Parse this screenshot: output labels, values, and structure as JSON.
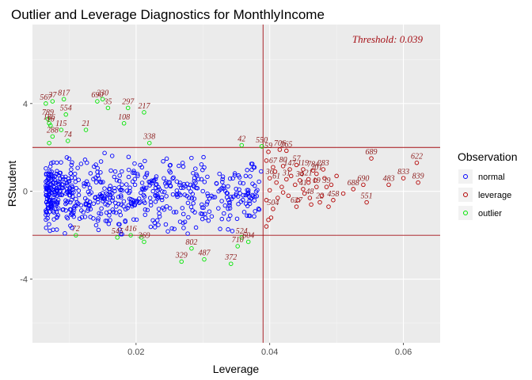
{
  "colors": {
    "panel": "#ebebeb",
    "grid_major": "#ffffff",
    "grid_minor": "#f5f5f5",
    "normal": "#0000ff",
    "leverage": "#b30000",
    "outlier": "#00e600",
    "threshold": "#a50f15",
    "label": "#8b1a1a"
  },
  "chart_data": {
    "type": "scatter",
    "title": "Outlier and Leverage Diagnostics for MonthlyIncome",
    "xlabel": "Leverage",
    "ylabel": "RStudent",
    "xlim": [
      0.0045,
      0.0655
    ],
    "ylim": [
      -6.9,
      7.6
    ],
    "x_ticks": [
      0.02,
      0.04,
      0.06
    ],
    "x_tick_labels": [
      "0.02",
      "0.04",
      "0.06"
    ],
    "y_ticks": [
      -4,
      0,
      4
    ],
    "y_tick_labels": [
      "-4",
      "0",
      "4"
    ],
    "grid": true,
    "legend": {
      "title": "Observation",
      "position": "right",
      "entries": [
        "normal",
        "leverage",
        "outlier"
      ]
    },
    "threshold_text": "Threshold: 0.039",
    "threshold_x": 0.039,
    "outlier_cutoffs": [
      -2,
      2
    ],
    "series": [
      {
        "name": "outlier",
        "points": [
          [
            0.0065,
            4.0,
            "567"
          ],
          [
            0.0075,
            4.1,
            "37"
          ],
          [
            0.0092,
            4.2,
            "817"
          ],
          [
            0.0068,
            3.3,
            "789"
          ],
          [
            0.007,
            3.1,
            "186"
          ],
          [
            0.0072,
            3.0,
            "16"
          ],
          [
            0.0075,
            2.5,
            "288"
          ],
          [
            0.007,
            2.2,
            ""
          ],
          [
            0.0095,
            3.5,
            "554"
          ],
          [
            0.0088,
            2.8,
            "115"
          ],
          [
            0.0098,
            2.3,
            "74"
          ],
          [
            0.0125,
            2.8,
            "21"
          ],
          [
            0.0142,
            4.1,
            "690"
          ],
          [
            0.015,
            4.2,
            "230"
          ],
          [
            0.0158,
            3.8,
            "35"
          ],
          [
            0.0188,
            3.8,
            "297"
          ],
          [
            0.0182,
            3.1,
            "108"
          ],
          [
            0.0212,
            3.6,
            "217"
          ],
          [
            0.022,
            2.2,
            "338"
          ],
          [
            0.0358,
            2.1,
            "42"
          ],
          [
            0.0388,
            2.05,
            "550"
          ],
          [
            0.011,
            -2.0,
            "72"
          ],
          [
            0.0172,
            -2.1,
            "545"
          ],
          [
            0.0192,
            -2.0,
            "416"
          ],
          [
            0.0212,
            -2.3,
            "369"
          ],
          [
            0.0268,
            -3.2,
            "329"
          ],
          [
            0.0283,
            -2.6,
            "802"
          ],
          [
            0.0302,
            -3.1,
            "487"
          ],
          [
            0.0342,
            -3.3,
            "372"
          ],
          [
            0.0352,
            -2.5,
            "710"
          ],
          [
            0.0358,
            -2.1,
            "524"
          ],
          [
            0.0368,
            -2.3,
            "604"
          ],
          [
            0.0208,
            -2.1,
            ""
          ]
        ]
      },
      {
        "name": "leverage",
        "points": [
          [
            0.0398,
            1.8,
            "59"
          ],
          [
            0.0415,
            1.9,
            "706"
          ],
          [
            0.0425,
            1.85,
            "265"
          ],
          [
            0.0405,
            1.1,
            "67"
          ],
          [
            0.042,
            1.15,
            "80"
          ],
          [
            0.044,
            1.2,
            "57"
          ],
          [
            0.043,
            1.0,
            "147"
          ],
          [
            0.045,
            1.0,
            "119"
          ],
          [
            0.0465,
            0.95,
            "784"
          ],
          [
            0.048,
            1.0,
            "283"
          ],
          [
            0.047,
            0.8,
            "201"
          ],
          [
            0.04,
            0.6,
            "36"
          ],
          [
            0.041,
            0.4,
            "61"
          ],
          [
            0.0425,
            0.55,
            "31"
          ],
          [
            0.0445,
            0.5,
            "34"
          ],
          [
            0.0458,
            0.55,
            "21"
          ],
          [
            0.04,
            0.05,
            ""
          ],
          [
            0.042,
            -0.05,
            ""
          ],
          [
            0.045,
            0.1,
            "41"
          ],
          [
            0.047,
            0.2,
            "19"
          ],
          [
            0.0485,
            0.2,
            "39"
          ],
          [
            0.046,
            -0.3,
            "48"
          ],
          [
            0.0405,
            -0.8,
            "504"
          ],
          [
            0.044,
            -0.7,
            "627"
          ],
          [
            0.0475,
            -0.5,
            "22"
          ],
          [
            0.0495,
            -0.4,
            "458"
          ],
          [
            0.0545,
            -0.5,
            "551"
          ],
          [
            0.0525,
            0.1,
            "688"
          ],
          [
            0.054,
            0.3,
            "690"
          ],
          [
            0.0578,
            0.3,
            "483"
          ],
          [
            0.06,
            0.6,
            "833"
          ],
          [
            0.0622,
            0.4,
            "839"
          ],
          [
            0.062,
            1.3,
            "622"
          ],
          [
            0.0552,
            1.5,
            "689"
          ],
          [
            0.0395,
            -0.4,
            ""
          ],
          [
            0.0395,
            1.4,
            ""
          ],
          [
            0.0395,
            -1.6,
            ""
          ],
          [
            0.0398,
            -1.3,
            ""
          ],
          [
            0.0402,
            -1.2,
            ""
          ],
          [
            0.0408,
            0.9,
            ""
          ],
          [
            0.0412,
            -0.3,
            ""
          ],
          [
            0.0418,
            0.2,
            ""
          ],
          [
            0.0428,
            -0.2,
            ""
          ],
          [
            0.0432,
            0.7,
            ""
          ],
          [
            0.0438,
            0.3,
            ""
          ],
          [
            0.0442,
            -0.4,
            ""
          ],
          [
            0.0448,
            0.8,
            ""
          ],
          [
            0.0452,
            -0.1,
            ""
          ],
          [
            0.0458,
            0.4,
            ""
          ],
          [
            0.0462,
            -0.6,
            ""
          ],
          [
            0.0468,
            0.5,
            ""
          ],
          [
            0.0478,
            -0.2,
            ""
          ],
          [
            0.0482,
            0.6,
            ""
          ],
          [
            0.0488,
            -0.7,
            ""
          ],
          [
            0.0492,
            0.3,
            ""
          ],
          [
            0.05,
            0.7,
            ""
          ],
          [
            0.051,
            -0.1,
            ""
          ]
        ]
      },
      {
        "name": "normal",
        "points": []
      }
    ],
    "normal_summary": {
      "x_range": [
        0.0065,
        0.039
      ],
      "y_range": [
        -1.95,
        1.95
      ],
      "count": 640,
      "notes": "dense cloud of unlabeled blue points"
    }
  }
}
